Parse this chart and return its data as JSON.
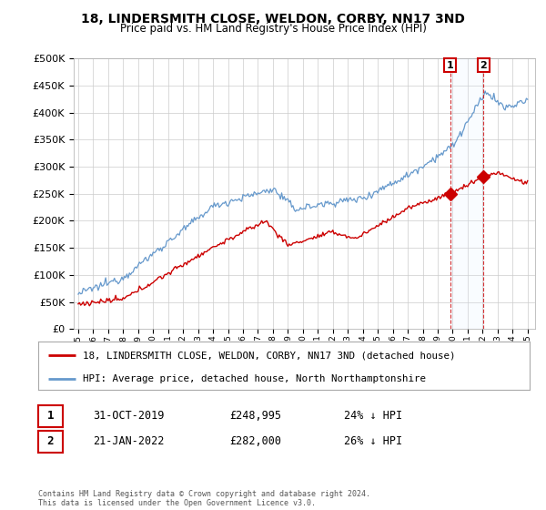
{
  "title": "18, LINDERSMITH CLOSE, WELDON, CORBY, NN17 3ND",
  "subtitle": "Price paid vs. HM Land Registry's House Price Index (HPI)",
  "legend_line1": "18, LINDERSMITH CLOSE, WELDON, CORBY, NN17 3ND (detached house)",
  "legend_line2": "HPI: Average price, detached house, North Northamptonshire",
  "footnote": "Contains HM Land Registry data © Crown copyright and database right 2024.\nThis data is licensed under the Open Government Licence v3.0.",
  "table_rows": [
    {
      "num": "1",
      "date": "31-OCT-2019",
      "price": "£248,995",
      "hpi": "24% ↓ HPI"
    },
    {
      "num": "2",
      "date": "21-JAN-2022",
      "price": "£282,000",
      "hpi": "26% ↓ HPI"
    }
  ],
  "transaction1_year": 2019.83,
  "transaction2_year": 2022.05,
  "transaction1_price": 248995,
  "transaction2_price": 282000,
  "price_color": "#cc0000",
  "hpi_color": "#6699cc",
  "vline_color": "#cc0000",
  "ylim": [
    0,
    500000
  ],
  "yticks": [
    0,
    50000,
    100000,
    150000,
    200000,
    250000,
    300000,
    350000,
    400000,
    450000,
    500000
  ],
  "background_color": "#ffffff",
  "grid_color": "#cccccc",
  "span_color": "#ddeeff"
}
